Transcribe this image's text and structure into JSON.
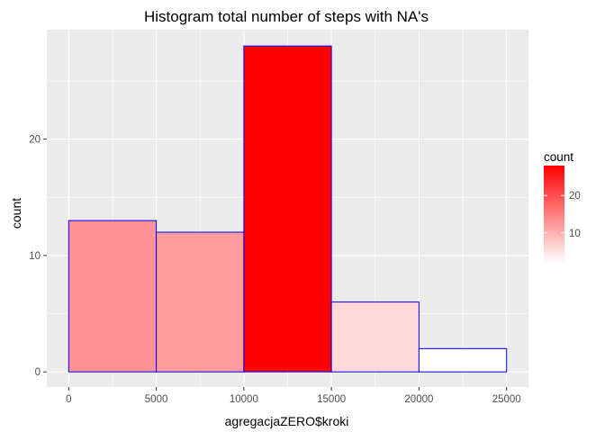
{
  "chart_data": {
    "type": "bar",
    "subtype": "histogram",
    "title": "Histogram total number of steps with NA's",
    "xlabel": "agregacjaZERO$kroki",
    "ylabel": "count",
    "bins": [
      {
        "from": 0,
        "to": 5000,
        "count": 13
      },
      {
        "from": 5000,
        "to": 10000,
        "count": 12
      },
      {
        "from": 10000,
        "to": 15000,
        "count": 28
      },
      {
        "from": 15000,
        "to": 20000,
        "count": 6
      },
      {
        "from": 20000,
        "to": 25000,
        "count": 2
      }
    ],
    "xlim": [
      -1250,
      26250
    ],
    "ylim": [
      -1.3,
      29.4
    ],
    "x_ticks": [
      0,
      5000,
      10000,
      15000,
      20000,
      25000
    ],
    "y_ticks": [
      0,
      10,
      20
    ],
    "grid": true,
    "panel_background": "#ebebeb",
    "grid_color": "#ffffff",
    "bar_outline_color": "#0000ff",
    "fill_low": "#ffffff",
    "fill_high": "#ff0000",
    "legend": {
      "title": "count",
      "placement": "right",
      "range": [
        2,
        28
      ],
      "ticks": [
        10,
        20
      ]
    }
  }
}
